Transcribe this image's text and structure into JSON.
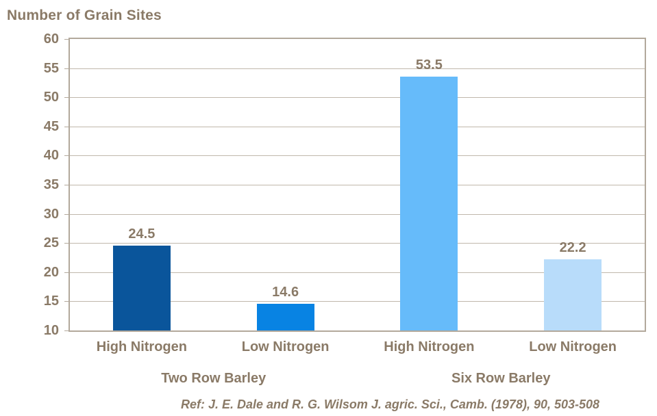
{
  "colors": {
    "background": "#ffffff",
    "text_brown": "#8a7a67",
    "plot_border": "#b2a89b",
    "gridline": "#c0b7ab",
    "bar_dark_blue": "#0a559b",
    "bar_medium_blue": "#0883e3",
    "bar_light_blue": "#66bbfa",
    "bar_pale_blue": "#b8dcfa"
  },
  "chart_data": {
    "type": "bar",
    "title": "Number of Grain Sites",
    "categories": [
      "High Nitrogen",
      "Low Nitrogen",
      "High Nitrogen",
      "Low Nitrogen"
    ],
    "groups": [
      {
        "label": "Two Row Barley",
        "span": [
          0,
          1
        ]
      },
      {
        "label": "Six Row Barley",
        "span": [
          2,
          3
        ]
      }
    ],
    "values": [
      24.5,
      14.6,
      53.5,
      22.2
    ],
    "data_labels": [
      "24.5",
      "14.6",
      "53.5",
      "22.2"
    ],
    "bar_colors": [
      "#0a559b",
      "#0883e3",
      "#66bbfa",
      "#b8dcfa"
    ],
    "ylim": [
      10,
      60
    ],
    "ytick_step": 5,
    "yticks": [
      10,
      15,
      20,
      25,
      30,
      35,
      40,
      45,
      50,
      55,
      60
    ],
    "grid": true,
    "legend": false,
    "xlabel": "",
    "ylabel": "Number of Grain Sites",
    "reference": "Ref: J. E. Dale and R. G. Wilsom J. agric. Sci., Camb. (1978), 90, 503-508"
  }
}
